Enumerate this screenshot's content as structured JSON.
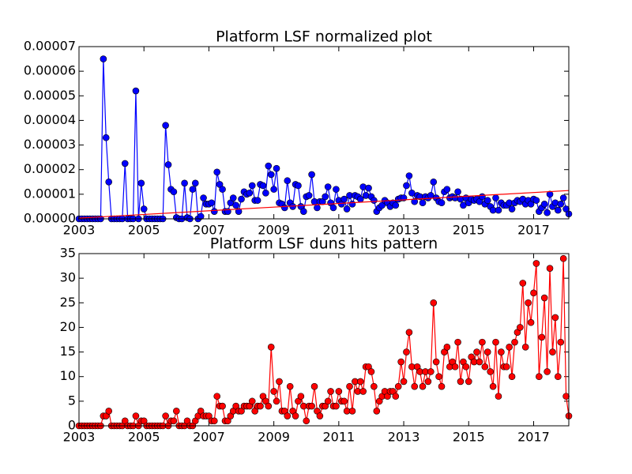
{
  "chart_data": [
    {
      "type": "line",
      "title": "Platform LSF normalized plot",
      "x": [
        2003,
        2003.083,
        2003.167,
        2003.25,
        2003.333,
        2003.417,
        2003.5,
        2003.583,
        2003.667,
        2003.75,
        2003.833,
        2003.917,
        2004,
        2004.083,
        2004.167,
        2004.25,
        2004.333,
        2004.417,
        2004.5,
        2004.583,
        2004.667,
        2004.75,
        2004.833,
        2004.917,
        2005,
        2005.083,
        2005.167,
        2005.25,
        2005.333,
        2005.417,
        2005.5,
        2005.583,
        2005.667,
        2005.75,
        2005.833,
        2005.917,
        2006,
        2006.083,
        2006.167,
        2006.25,
        2006.333,
        2006.417,
        2006.5,
        2006.583,
        2006.667,
        2006.75,
        2006.833,
        2006.917,
        2007,
        2007.083,
        2007.167,
        2007.25,
        2007.333,
        2007.417,
        2007.5,
        2007.583,
        2007.667,
        2007.75,
        2007.833,
        2007.917,
        2008,
        2008.083,
        2008.167,
        2008.25,
        2008.333,
        2008.417,
        2008.5,
        2008.583,
        2008.667,
        2008.75,
        2008.833,
        2008.917,
        2009,
        2009.083,
        2009.167,
        2009.25,
        2009.333,
        2009.417,
        2009.5,
        2009.583,
        2009.667,
        2009.75,
        2009.833,
        2009.917,
        2010,
        2010.083,
        2010.167,
        2010.25,
        2010.333,
        2010.417,
        2010.5,
        2010.583,
        2010.667,
        2010.75,
        2010.833,
        2010.917,
        2011,
        2011.083,
        2011.167,
        2011.25,
        2011.333,
        2011.417,
        2011.5,
        2011.583,
        2011.667,
        2011.75,
        2011.833,
        2011.917,
        2012,
        2012.083,
        2012.167,
        2012.25,
        2012.333,
        2012.417,
        2012.5,
        2012.583,
        2012.667,
        2012.75,
        2012.833,
        2012.917,
        2013,
        2013.083,
        2013.167,
        2013.25,
        2013.333,
        2013.417,
        2013.5,
        2013.583,
        2013.667,
        2013.75,
        2013.833,
        2013.917,
        2014,
        2014.083,
        2014.167,
        2014.25,
        2014.333,
        2014.417,
        2014.5,
        2014.583,
        2014.667,
        2014.75,
        2014.833,
        2014.917,
        2015,
        2015.083,
        2015.167,
        2015.25,
        2015.333,
        2015.417,
        2015.5,
        2015.583,
        2015.667,
        2015.75,
        2015.833,
        2015.917,
        2016,
        2016.083,
        2016.167,
        2016.25,
        2016.333,
        2016.417,
        2016.5,
        2016.583,
        2016.667,
        2016.75,
        2016.833,
        2016.917,
        2017,
        2017.083,
        2017.167,
        2017.25,
        2017.333,
        2017.417,
        2017.5,
        2017.583,
        2017.667,
        2017.75,
        2017.833,
        2017.917,
        2018,
        2018.083
      ],
      "series": [
        {
          "color": "#0000ff",
          "marker": "o",
          "values": [
            0,
            0,
            0,
            0,
            0,
            0,
            0,
            0,
            0,
            6.5e-05,
            3.3e-05,
            1.5e-05,
            0,
            0,
            0,
            0,
            0,
            2.25e-05,
            0,
            0,
            0,
            5.2e-05,
            0,
            1.45e-05,
            4e-06,
            0,
            0,
            0,
            0,
            0,
            0,
            0,
            3.8e-05,
            2.2e-05,
            1.2e-05,
            1.1e-05,
            5e-07,
            0,
            0,
            1.45e-05,
            5e-07,
            0,
            1.2e-05,
            1.45e-05,
            0,
            1e-06,
            8.5e-06,
            6e-06,
            6e-06,
            6.5e-06,
            3e-06,
            1.9e-05,
            1.4e-05,
            1.2e-05,
            3e-06,
            3e-06,
            6.5e-06,
            8.5e-06,
            5.5e-06,
            3e-06,
            8e-06,
            1.1e-05,
            1e-05,
            1.05e-05,
            1.35e-05,
            7.5e-06,
            7.5e-06,
            1.4e-05,
            1.35e-05,
            1.05e-05,
            2.15e-05,
            1.8e-05,
            1.2e-05,
            2.05e-05,
            6.5e-06,
            6e-06,
            4.5e-06,
            1.55e-05,
            6.5e-06,
            5e-06,
            1.4e-05,
            1.35e-05,
            5e-06,
            3e-06,
            9e-06,
            9.5e-06,
            1.8e-05,
            7e-06,
            4.5e-06,
            7e-06,
            7e-06,
            9e-06,
            1.3e-05,
            6.5e-06,
            4.5e-06,
            1.2e-05,
            7.5e-06,
            6e-06,
            8e-06,
            4e-06,
            9.5e-06,
            6e-06,
            9.5e-06,
            9e-06,
            8e-06,
            1.3e-05,
            9.5e-06,
            1.25e-05,
            9e-06,
            7.5e-06,
            3e-06,
            4.5e-06,
            5.5e-06,
            7.5e-06,
            6.5e-06,
            5e-06,
            6.5e-06,
            5.5e-06,
            8e-06,
            8.5e-06,
            8.5e-06,
            1.35e-05,
            1.75e-05,
            1.05e-05,
            7e-06,
            9.5e-06,
            9e-06,
            6.5e-06,
            9e-06,
            8.5e-06,
            9.5e-06,
            1.5e-05,
            8.5e-06,
            7e-06,
            6.5e-06,
            1.1e-05,
            1.2e-05,
            8.5e-06,
            9e-06,
            8.5e-06,
            1.1e-05,
            8e-06,
            5.5e-06,
            8.5e-06,
            6.5e-06,
            8e-06,
            7.5e-06,
            8e-06,
            7e-06,
            9e-06,
            6e-06,
            7.5e-06,
            5e-06,
            3.5e-06,
            8.5e-06,
            3.5e-06,
            6.5e-06,
            5.5e-06,
            5.5e-06,
            6.5e-06,
            4e-06,
            6.5e-06,
            7.5e-06,
            7e-06,
            8e-06,
            6e-06,
            7.5e-06,
            6e-06,
            8e-06,
            7.5e-06,
            3e-06,
            4.5e-06,
            6e-06,
            2.5e-06,
            1e-05,
            5e-06,
            6.5e-06,
            3.5e-06,
            6e-06,
            8.5e-06,
            4e-06,
            2e-06
          ]
        },
        {
          "color": "#ff0000",
          "marker": "none",
          "x": [
            2003,
            2018.083
          ],
          "values": [
            3e-07,
            1.15e-05
          ]
        }
      ],
      "xlim": [
        2003,
        2018.083
      ],
      "xticks": [
        2003,
        2005,
        2007,
        2009,
        2011,
        2013,
        2015,
        2017
      ],
      "ylim": [
        0,
        7e-05
      ],
      "yticks": [
        {
          "value": 0,
          "label": "0.00000"
        },
        {
          "value": 1e-05,
          "label": "0.00001"
        },
        {
          "value": 2e-05,
          "label": "0.00002"
        },
        {
          "value": 3e-05,
          "label": "0.00003"
        },
        {
          "value": 4e-05,
          "label": "0.00004"
        },
        {
          "value": 5e-05,
          "label": "0.00005"
        },
        {
          "value": 6e-05,
          "label": "0.00006"
        },
        {
          "value": 7e-05,
          "label": "0.00007"
        }
      ],
      "grid": false
    },
    {
      "type": "line",
      "title": "Platform LSF duns hits pattern",
      "x": [
        2003,
        2003.083,
        2003.167,
        2003.25,
        2003.333,
        2003.417,
        2003.5,
        2003.583,
        2003.667,
        2003.75,
        2003.833,
        2003.917,
        2004,
        2004.083,
        2004.167,
        2004.25,
        2004.333,
        2004.417,
        2004.5,
        2004.583,
        2004.667,
        2004.75,
        2004.833,
        2004.917,
        2005,
        2005.083,
        2005.167,
        2005.25,
        2005.333,
        2005.417,
        2005.5,
        2005.583,
        2005.667,
        2005.75,
        2005.833,
        2005.917,
        2006,
        2006.083,
        2006.167,
        2006.25,
        2006.333,
        2006.417,
        2006.5,
        2006.583,
        2006.667,
        2006.75,
        2006.833,
        2006.917,
        2007,
        2007.083,
        2007.167,
        2007.25,
        2007.333,
        2007.417,
        2007.5,
        2007.583,
        2007.667,
        2007.75,
        2007.833,
        2007.917,
        2008,
        2008.083,
        2008.167,
        2008.25,
        2008.333,
        2008.417,
        2008.5,
        2008.583,
        2008.667,
        2008.75,
        2008.833,
        2008.917,
        2009,
        2009.083,
        2009.167,
        2009.25,
        2009.333,
        2009.417,
        2009.5,
        2009.583,
        2009.667,
        2009.75,
        2009.833,
        2009.917,
        2010,
        2010.083,
        2010.167,
        2010.25,
        2010.333,
        2010.417,
        2010.5,
        2010.583,
        2010.667,
        2010.75,
        2010.833,
        2010.917,
        2011,
        2011.083,
        2011.167,
        2011.25,
        2011.333,
        2011.417,
        2011.5,
        2011.583,
        2011.667,
        2011.75,
        2011.833,
        2011.917,
        2012,
        2012.083,
        2012.167,
        2012.25,
        2012.333,
        2012.417,
        2012.5,
        2012.583,
        2012.667,
        2012.75,
        2012.833,
        2012.917,
        2013,
        2013.083,
        2013.167,
        2013.25,
        2013.333,
        2013.417,
        2013.5,
        2013.583,
        2013.667,
        2013.75,
        2013.833,
        2013.917,
        2014,
        2014.083,
        2014.167,
        2014.25,
        2014.333,
        2014.417,
        2014.5,
        2014.583,
        2014.667,
        2014.75,
        2014.833,
        2014.917,
        2015,
        2015.083,
        2015.167,
        2015.25,
        2015.333,
        2015.417,
        2015.5,
        2015.583,
        2015.667,
        2015.75,
        2015.833,
        2015.917,
        2016,
        2016.083,
        2016.167,
        2016.25,
        2016.333,
        2016.417,
        2016.5,
        2016.583,
        2016.667,
        2016.75,
        2016.833,
        2016.917,
        2017,
        2017.083,
        2017.167,
        2017.25,
        2017.333,
        2017.417,
        2017.5,
        2017.583,
        2017.667,
        2017.75,
        2017.833,
        2017.917,
        2018,
        2018.083
      ],
      "series": [
        {
          "color": "#ff0000",
          "marker": "o",
          "values": [
            0,
            0,
            0,
            0,
            0,
            0,
            0,
            0,
            0,
            2,
            2,
            3,
            0,
            0,
            0,
            0,
            0,
            1,
            0,
            0,
            0,
            2,
            0,
            1,
            1,
            0,
            0,
            0,
            0,
            0,
            0,
            0,
            2,
            0,
            1,
            1,
            3,
            0,
            0,
            0,
            1,
            0,
            0,
            1,
            2,
            3,
            2,
            2,
            2,
            1,
            1,
            6,
            4,
            4,
            1,
            1,
            2,
            3,
            4,
            3,
            3,
            4,
            4,
            4,
            5,
            3,
            4,
            4,
            6,
            5,
            4,
            16,
            7,
            5,
            9,
            3,
            3,
            2,
            8,
            3,
            2,
            5,
            6,
            4,
            1,
            4,
            4,
            8,
            3,
            2,
            4,
            4,
            5,
            7,
            4,
            4,
            7,
            5,
            5,
            3,
            8,
            3,
            9,
            7,
            9,
            7,
            12,
            12,
            11,
            8,
            3,
            5,
            6,
            7,
            6,
            7,
            7,
            6,
            8,
            13,
            9,
            15,
            19,
            12,
            8,
            12,
            11,
            8,
            11,
            9,
            11,
            25,
            13,
            10,
            8,
            15,
            16,
            12,
            13,
            12,
            17,
            9,
            13,
            12,
            9,
            14,
            13,
            15,
            13,
            17,
            12,
            15,
            11,
            8,
            17,
            6,
            15,
            12,
            12,
            16,
            10,
            17,
            19,
            20,
            29,
            16,
            25,
            21,
            27,
            33,
            10,
            18,
            26,
            11,
            32,
            15,
            22,
            10,
            17,
            34,
            6,
            2
          ]
        }
      ],
      "xlim": [
        2003,
        2018.083
      ],
      "xticks": [
        2003,
        2005,
        2007,
        2009,
        2011,
        2013,
        2015,
        2017
      ],
      "ylim": [
        0,
        35
      ],
      "yticks": [
        0,
        5,
        10,
        15,
        20,
        25,
        30,
        35
      ],
      "grid": false
    }
  ]
}
